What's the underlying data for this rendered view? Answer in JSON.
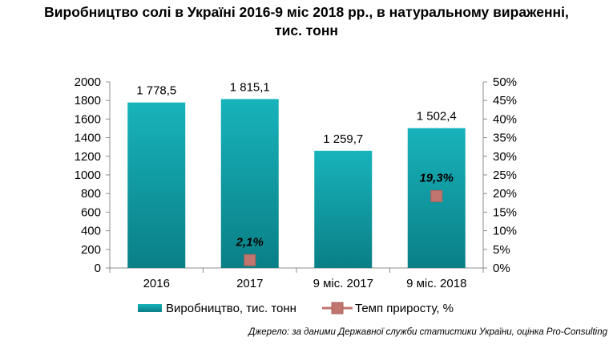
{
  "title_line1": "Виробництво солі в Україні 2016-9 міс 2018 рр., в натуральному вираженні,",
  "title_line2": "тис. тонн",
  "source": "Джерело: за даними Державної служби статистики України, оцінка Pro-Consulting",
  "chart_data": {
    "type": "bar",
    "categories": [
      "2016",
      "2017",
      "9 міс. 2017",
      "9 міс. 2018"
    ],
    "series": [
      {
        "name": "Виробництво, тис. тонн",
        "type": "bar",
        "axis": "left",
        "values": [
          1778.5,
          1815.1,
          1259.7,
          1502.4
        ],
        "labels": [
          "1 778,5",
          "1 815,1",
          "1 259,7",
          "1 502,4"
        ],
        "color": "#0b9ca3"
      },
      {
        "name": "Темп приросту, %",
        "type": "marker",
        "axis": "right",
        "values": [
          null,
          2.1,
          null,
          19.3
        ],
        "labels": [
          "",
          "2,1%",
          "",
          "19,3%"
        ],
        "color": "#c0766f"
      }
    ],
    "y_left": {
      "ticks": [
        "0",
        "200",
        "400",
        "600",
        "800",
        "1000",
        "1200",
        "1400",
        "1600",
        "1800",
        "2000"
      ],
      "ylim": [
        0,
        2000
      ]
    },
    "y_right": {
      "ticks": [
        "0%",
        "5%",
        "10%",
        "15%",
        "20%",
        "25%",
        "30%",
        "35%",
        "40%",
        "45%",
        "50%"
      ],
      "ylim": [
        0,
        50
      ]
    },
    "grid": false,
    "legend_position": "bottom"
  }
}
